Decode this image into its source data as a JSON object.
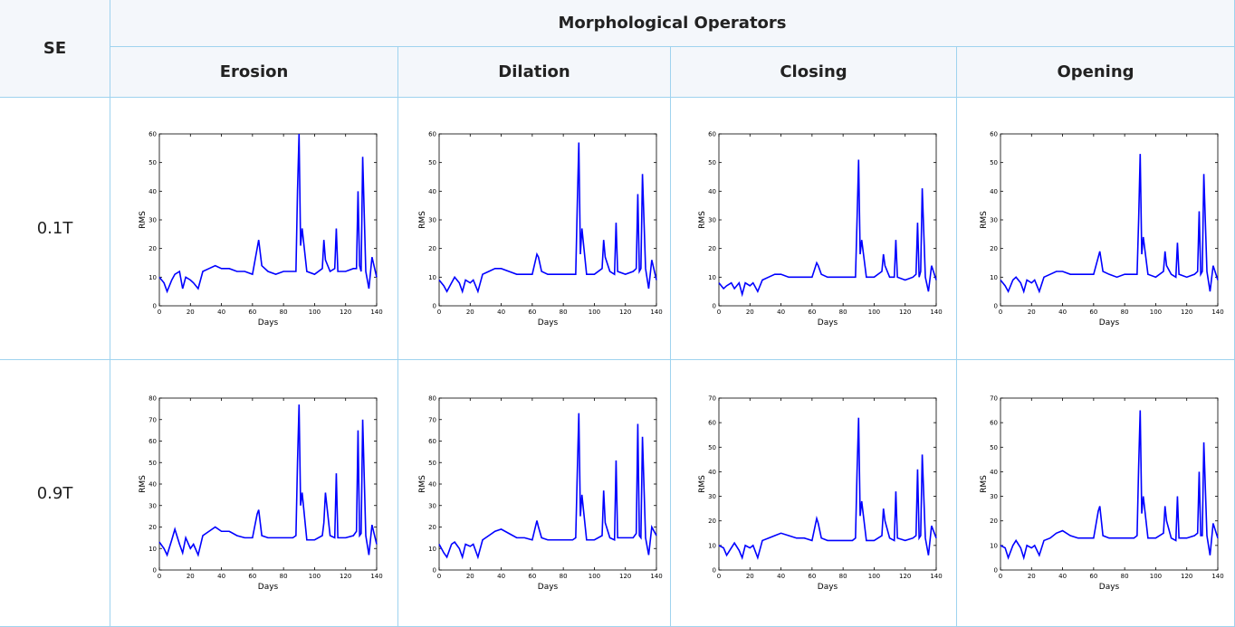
{
  "table": {
    "headers": {
      "se": "SE",
      "group": "Morphological Operators",
      "operators": [
        "Erosion",
        "Dilation",
        "Closing",
        "Opening"
      ]
    },
    "rows": [
      {
        "label": "0.1T"
      },
      {
        "label": "0.9T"
      }
    ]
  },
  "chart_data": [
    {
      "type": "line",
      "xlabel": "Days",
      "ylabel": "RMS",
      "color": "#0000ff",
      "xlim": [
        0,
        140
      ],
      "ylim": [
        0,
        60
      ],
      "xticks": [
        0,
        20,
        40,
        60,
        80,
        100,
        120,
        140
      ],
      "yticks": [
        0,
        10,
        20,
        30,
        40,
        50,
        60
      ],
      "x": [
        0,
        3,
        5,
        8,
        10,
        13,
        15,
        17,
        20,
        22,
        25,
        28,
        32,
        36,
        40,
        45,
        50,
        55,
        60,
        63,
        64,
        66,
        70,
        75,
        80,
        86,
        88,
        89,
        90,
        91,
        92,
        95,
        100,
        105,
        106,
        107,
        110,
        113,
        114,
        115,
        120,
        125,
        127,
        128,
        129,
        130,
        131,
        133,
        135,
        137,
        140
      ],
      "values": [
        10,
        8,
        5,
        9,
        11,
        12,
        6,
        10,
        9,
        8,
        6,
        12,
        13,
        14,
        13,
        13,
        12,
        12,
        11,
        20,
        23,
        14,
        12,
        11,
        12,
        12,
        12,
        40,
        60,
        21,
        27,
        12,
        11,
        13,
        23,
        16,
        12,
        13,
        27,
        12,
        12,
        13,
        13,
        40,
        14,
        12,
        52,
        12,
        6,
        17,
        10
      ]
    },
    {
      "type": "line",
      "xlabel": "Days",
      "ylabel": "RMS",
      "color": "#0000ff",
      "xlim": [
        0,
        140
      ],
      "ylim": [
        0,
        60
      ],
      "xticks": [
        0,
        20,
        40,
        60,
        80,
        100,
        120,
        140
      ],
      "yticks": [
        0,
        10,
        20,
        30,
        40,
        50,
        60
      ],
      "x": [
        0,
        3,
        5,
        8,
        10,
        13,
        15,
        17,
        20,
        22,
        25,
        28,
        32,
        36,
        40,
        45,
        50,
        55,
        60,
        63,
        64,
        66,
        70,
        75,
        80,
        86,
        88,
        89,
        90,
        91,
        92,
        95,
        100,
        105,
        106,
        107,
        110,
        113,
        114,
        115,
        120,
        125,
        127,
        128,
        129,
        130,
        131,
        133,
        135,
        137,
        140
      ],
      "values": [
        9,
        7,
        5,
        8,
        10,
        8,
        5,
        9,
        8,
        9,
        5,
        11,
        12,
        13,
        13,
        12,
        11,
        11,
        11,
        18,
        17,
        12,
        11,
        11,
        11,
        11,
        11,
        35,
        57,
        18,
        27,
        11,
        11,
        13,
        23,
        17,
        12,
        11,
        29,
        12,
        11,
        12,
        13,
        39,
        12,
        13,
        46,
        13,
        6,
        16,
        9
      ]
    },
    {
      "type": "line",
      "xlabel": "Days",
      "ylabel": "RMS",
      "color": "#0000ff",
      "xlim": [
        0,
        140
      ],
      "ylim": [
        0,
        60
      ],
      "xticks": [
        0,
        20,
        40,
        60,
        80,
        100,
        120,
        140
      ],
      "yticks": [
        0,
        10,
        20,
        30,
        40,
        50,
        60
      ],
      "x": [
        0,
        3,
        5,
        8,
        10,
        13,
        15,
        17,
        20,
        22,
        25,
        28,
        32,
        36,
        40,
        45,
        50,
        55,
        60,
        63,
        64,
        66,
        70,
        75,
        80,
        86,
        88,
        89,
        90,
        91,
        92,
        95,
        100,
        105,
        106,
        107,
        110,
        113,
        114,
        115,
        120,
        125,
        127,
        128,
        129,
        130,
        131,
        133,
        135,
        137,
        140
      ],
      "values": [
        8,
        6,
        7,
        8,
        6,
        8,
        4,
        8,
        7,
        8,
        5,
        9,
        10,
        11,
        11,
        10,
        10,
        10,
        10,
        15,
        14,
        11,
        10,
        10,
        10,
        10,
        10,
        30,
        51,
        18,
        23,
        10,
        10,
        12,
        18,
        14,
        10,
        10,
        23,
        10,
        9,
        10,
        11,
        29,
        10,
        12,
        41,
        10,
        5,
        14,
        9
      ]
    },
    {
      "type": "line",
      "xlabel": "Days",
      "ylabel": "RMS",
      "color": "#0000ff",
      "xlim": [
        0,
        140
      ],
      "ylim": [
        0,
        60
      ],
      "xticks": [
        0,
        20,
        40,
        60,
        80,
        100,
        120,
        140
      ],
      "yticks": [
        0,
        10,
        20,
        30,
        40,
        50,
        60
      ],
      "x": [
        0,
        3,
        5,
        8,
        10,
        13,
        15,
        17,
        20,
        22,
        25,
        28,
        32,
        36,
        40,
        45,
        50,
        55,
        60,
        63,
        64,
        66,
        70,
        75,
        80,
        86,
        88,
        89,
        90,
        91,
        92,
        95,
        100,
        105,
        106,
        107,
        110,
        113,
        114,
        115,
        120,
        125,
        127,
        128,
        129,
        130,
        131,
        133,
        135,
        137,
        140
      ],
      "values": [
        9,
        7,
        5,
        9,
        10,
        8,
        5,
        9,
        8,
        9,
        5,
        10,
        11,
        12,
        12,
        11,
        11,
        11,
        11,
        17,
        19,
        12,
        11,
        10,
        11,
        11,
        11,
        30,
        53,
        18,
        24,
        11,
        10,
        12,
        19,
        14,
        11,
        10,
        22,
        11,
        10,
        11,
        12,
        33,
        11,
        12,
        46,
        12,
        5,
        14,
        9
      ]
    },
    {
      "type": "line",
      "xlabel": "Days",
      "ylabel": "RMS",
      "color": "#0000ff",
      "xlim": [
        0,
        140
      ],
      "ylim": [
        0,
        80
      ],
      "xticks": [
        0,
        20,
        40,
        60,
        80,
        100,
        120,
        140
      ],
      "yticks": [
        0,
        10,
        20,
        30,
        40,
        50,
        60,
        70,
        80
      ],
      "x": [
        0,
        3,
        5,
        8,
        10,
        13,
        15,
        17,
        20,
        22,
        25,
        28,
        32,
        36,
        40,
        45,
        50,
        55,
        60,
        63,
        64,
        66,
        70,
        75,
        80,
        86,
        88,
        89,
        90,
        91,
        92,
        95,
        100,
        105,
        106,
        107,
        110,
        113,
        114,
        115,
        120,
        125,
        127,
        128,
        129,
        130,
        131,
        133,
        135,
        137,
        140
      ],
      "values": [
        13,
        10,
        7,
        14,
        19,
        12,
        8,
        15,
        10,
        12,
        7,
        16,
        18,
        20,
        18,
        18,
        16,
        15,
        15,
        26,
        28,
        16,
        15,
        15,
        15,
        15,
        16,
        50,
        77,
        30,
        36,
        14,
        14,
        16,
        22,
        36,
        16,
        15,
        45,
        15,
        15,
        16,
        18,
        65,
        16,
        17,
        70,
        16,
        7,
        21,
        12
      ]
    },
    {
      "type": "line",
      "xlabel": "Days",
      "ylabel": "RMS",
      "color": "#0000ff",
      "xlim": [
        0,
        140
      ],
      "ylim": [
        0,
        80
      ],
      "xticks": [
        0,
        20,
        40,
        60,
        80,
        100,
        120,
        140
      ],
      "yticks": [
        0,
        10,
        20,
        30,
        40,
        50,
        60,
        70,
        80
      ],
      "x": [
        0,
        3,
        5,
        8,
        10,
        13,
        15,
        17,
        20,
        22,
        25,
        28,
        32,
        36,
        40,
        45,
        50,
        55,
        60,
        63,
        64,
        66,
        70,
        75,
        80,
        86,
        88,
        89,
        90,
        91,
        92,
        95,
        100,
        105,
        106,
        107,
        110,
        113,
        114,
        115,
        120,
        125,
        127,
        128,
        129,
        130,
        131,
        133,
        135,
        137,
        140
      ],
      "values": [
        12,
        8,
        6,
        12,
        13,
        10,
        6,
        12,
        11,
        12,
        6,
        14,
        16,
        18,
        19,
        17,
        15,
        15,
        14,
        23,
        20,
        15,
        14,
        14,
        14,
        14,
        15,
        45,
        73,
        25,
        35,
        14,
        14,
        16,
        37,
        22,
        15,
        14,
        51,
        15,
        15,
        15,
        17,
        68,
        16,
        15,
        62,
        15,
        7,
        20,
        16
      ]
    },
    {
      "type": "line",
      "xlabel": "Days",
      "ylabel": "RMS",
      "color": "#0000ff",
      "xlim": [
        0,
        140
      ],
      "ylim": [
        0,
        70
      ],
      "xticks": [
        0,
        20,
        40,
        60,
        80,
        100,
        120,
        140
      ],
      "yticks": [
        0,
        10,
        20,
        30,
        40,
        50,
        60,
        70
      ],
      "x": [
        0,
        3,
        5,
        8,
        10,
        13,
        15,
        17,
        20,
        22,
        25,
        28,
        32,
        36,
        40,
        45,
        50,
        55,
        60,
        63,
        64,
        66,
        70,
        75,
        80,
        86,
        88,
        89,
        90,
        91,
        92,
        95,
        100,
        105,
        106,
        107,
        110,
        113,
        114,
        115,
        120,
        125,
        127,
        128,
        129,
        130,
        131,
        133,
        135,
        137,
        140
      ],
      "values": [
        10,
        9,
        6,
        9,
        11,
        8,
        5,
        10,
        9,
        10,
        5,
        12,
        13,
        14,
        15,
        14,
        13,
        13,
        12,
        21,
        19,
        13,
        12,
        12,
        12,
        12,
        13,
        40,
        62,
        22,
        28,
        12,
        12,
        14,
        25,
        20,
        13,
        12,
        32,
        13,
        12,
        13,
        14,
        41,
        13,
        14,
        47,
        13,
        6,
        18,
        13
      ]
    },
    {
      "type": "line",
      "xlabel": "Days",
      "ylabel": "RMS",
      "color": "#0000ff",
      "xlim": [
        0,
        140
      ],
      "ylim": [
        0,
        70
      ],
      "xticks": [
        0,
        20,
        40,
        60,
        80,
        100,
        120,
        140
      ],
      "yticks": [
        0,
        10,
        20,
        30,
        40,
        50,
        60,
        70
      ],
      "x": [
        0,
        3,
        5,
        8,
        10,
        13,
        15,
        17,
        20,
        22,
        25,
        28,
        32,
        36,
        40,
        45,
        50,
        55,
        60,
        63,
        64,
        66,
        70,
        75,
        80,
        86,
        88,
        89,
        90,
        91,
        92,
        95,
        100,
        105,
        106,
        107,
        110,
        113,
        114,
        115,
        120,
        125,
        127,
        128,
        129,
        130,
        131,
        133,
        135,
        137,
        140
      ],
      "values": [
        10,
        9,
        5,
        10,
        12,
        9,
        5,
        10,
        9,
        10,
        6,
        12,
        13,
        15,
        16,
        14,
        13,
        13,
        13,
        24,
        26,
        14,
        13,
        13,
        13,
        13,
        14,
        42,
        65,
        23,
        30,
        13,
        13,
        15,
        26,
        20,
        13,
        12,
        30,
        13,
        13,
        14,
        15,
        40,
        14,
        14,
        52,
        14,
        6,
        19,
        13
      ]
    }
  ]
}
